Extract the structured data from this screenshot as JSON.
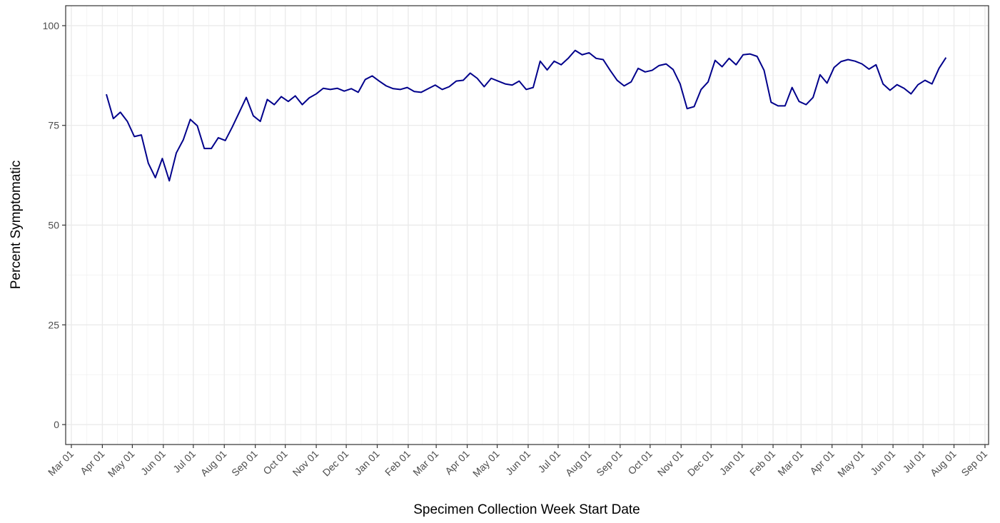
{
  "chart_data": {
    "type": "line",
    "x_label": "Specimen Collection Week Start Date",
    "y_label": "Percent Symptomatic",
    "x": [
      35,
      42,
      49,
      56,
      63,
      70,
      77,
      84,
      91,
      98,
      105,
      112,
      119,
      126,
      133,
      140,
      147,
      154,
      161,
      168,
      175,
      182,
      189,
      196,
      203,
      210,
      217,
      224,
      231,
      238,
      245,
      252,
      259,
      266,
      273,
      280,
      287,
      294,
      301,
      308,
      315,
      322,
      329,
      336,
      343,
      350,
      357,
      364,
      371,
      378,
      385,
      392,
      399,
      406,
      413,
      420,
      427,
      434,
      441,
      448,
      455,
      462,
      469,
      476,
      483,
      490,
      497,
      504,
      511,
      518,
      525,
      532,
      539,
      546,
      553,
      560,
      567,
      574,
      581,
      588,
      595,
      602,
      609,
      616,
      623,
      630,
      637,
      644,
      651,
      658,
      665,
      672,
      679,
      686,
      693,
      700,
      707,
      714,
      721,
      728,
      735,
      742,
      749,
      756,
      763,
      770,
      777,
      784,
      791,
      798,
      805,
      812,
      819,
      826,
      833,
      840,
      847,
      854,
      861,
      868,
      875
    ],
    "series": [
      {
        "color": "#00008B",
        "values": [
          82.8,
          76.7,
          78.3,
          76,
          72.2,
          72.6,
          65.5,
          61.9,
          66.7,
          61.1,
          68.1,
          71.4,
          76.5,
          74.9,
          69.2,
          69.2,
          71.9,
          71.2,
          74.6,
          78.3,
          82.0,
          77.4,
          76,
          81.5,
          80.2,
          82.2,
          81,
          82.4,
          80.2,
          81.9,
          82.9,
          84.3,
          84,
          84.3,
          83.6,
          84.2,
          83.3,
          86.5,
          87.4,
          86.1,
          84.9,
          84.2,
          84,
          84.5,
          83.5,
          83.3,
          84.2,
          85.1,
          84,
          84.7,
          86.1,
          86.3,
          88.1,
          86.8,
          84.7,
          86.8,
          86.1,
          85.4,
          85.1,
          86.1,
          84,
          84.5,
          91.1,
          88.9,
          91.1,
          90.2,
          91.8,
          93.8,
          92.7,
          93.2,
          91.8,
          91.5,
          88.8,
          86.3,
          84.9,
          85.9,
          89.3,
          88.4,
          88.8,
          90,
          90.4,
          89,
          85.4,
          79.2,
          79.7,
          84,
          85.9,
          91.3,
          89.7,
          91.8,
          90.2,
          92.7,
          92.9,
          92.3,
          88.8,
          80.8,
          79.9,
          79.9,
          84.5,
          81,
          80.2,
          82,
          87.7,
          85.6,
          89.5,
          91,
          91.5,
          91.1,
          90.4,
          89.1,
          90.2,
          85.4,
          83.8,
          85.2,
          84.3,
          82.9,
          85.2,
          86.3,
          85.4,
          89.3,
          92.0
        ]
      }
    ],
    "xlim": [
      -5.7,
      917.6
    ],
    "xticks": [
      {
        "value": 0,
        "label": "Mar 01"
      },
      {
        "value": 31,
        "label": "Apr 01"
      },
      {
        "value": 61,
        "label": "May 01"
      },
      {
        "value": 92,
        "label": "Jun 01"
      },
      {
        "value": 122,
        "label": "Jul 01"
      },
      {
        "value": 153,
        "label": "Aug 01"
      },
      {
        "value": 184,
        "label": "Sep 01"
      },
      {
        "value": 214,
        "label": "Oct 01"
      },
      {
        "value": 245,
        "label": "Nov 01"
      },
      {
        "value": 275,
        "label": "Dec 01"
      },
      {
        "value": 306,
        "label": "Jan 01"
      },
      {
        "value": 337,
        "label": "Feb 01"
      },
      {
        "value": 365,
        "label": "Mar 01"
      },
      {
        "value": 396,
        "label": "Apr 01"
      },
      {
        "value": 426,
        "label": "May 01"
      },
      {
        "value": 457,
        "label": "Jun 01"
      },
      {
        "value": 487,
        "label": "Jul 01"
      },
      {
        "value": 518,
        "label": "Aug 01"
      },
      {
        "value": 549,
        "label": "Sep 01"
      },
      {
        "value": 579,
        "label": "Oct 01"
      },
      {
        "value": 610,
        "label": "Nov 01"
      },
      {
        "value": 640,
        "label": "Dec 01"
      },
      {
        "value": 671,
        "label": "Jan 01"
      },
      {
        "value": 702,
        "label": "Feb 01"
      },
      {
        "value": 730,
        "label": "Mar 01"
      },
      {
        "value": 761,
        "label": "Apr 01"
      },
      {
        "value": 791,
        "label": "May 01"
      },
      {
        "value": 822,
        "label": "Jun 01"
      },
      {
        "value": 852,
        "label": "Jul 01"
      },
      {
        "value": 883,
        "label": "Aug 01"
      },
      {
        "value": 914,
        "label": "Sep 01"
      }
    ],
    "ylim": [
      -5,
      105
    ],
    "yticks": [
      0,
      25,
      50,
      75,
      100
    ],
    "grid": true
  }
}
